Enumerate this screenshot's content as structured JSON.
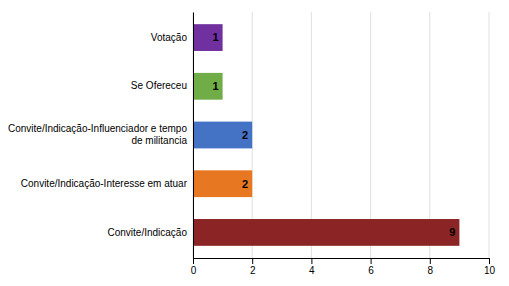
{
  "chart_data": {
    "type": "bar",
    "orientation": "horizontal",
    "categories": [
      "Convite/Indicação",
      "Convite/Indicação-Interesse em atuar",
      "Convite/Indicação-Influenciador e tempo\nde militancia",
      "Se Ofereceu",
      "Votação"
    ],
    "values": [
      9,
      2,
      2,
      1,
      1
    ],
    "colors": [
      "#8B2525",
      "#E87722",
      "#4472C4",
      "#70AD47",
      "#7030A0"
    ],
    "xlim": [
      0,
      10
    ],
    "xticks": [
      0,
      2,
      4,
      6,
      8,
      10
    ],
    "grid": true,
    "data_labels": true
  }
}
